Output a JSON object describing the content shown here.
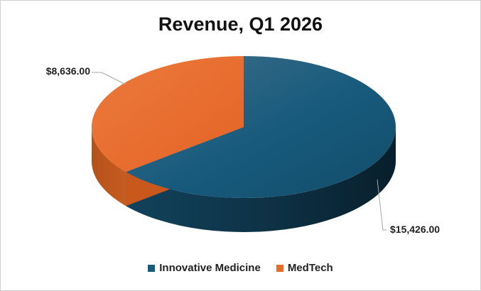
{
  "chart_data": {
    "type": "pie",
    "title": "Revenue, Q1 2026",
    "categories": [
      "Innovative Medicine",
      "MedTech"
    ],
    "values": [
      15426.0,
      8636.0
    ],
    "data_labels": [
      "$15,426.00",
      "$8,636.00"
    ],
    "colors": [
      "#175a7c",
      "#ea6a28"
    ],
    "three_d": true,
    "legend_position": "bottom"
  }
}
